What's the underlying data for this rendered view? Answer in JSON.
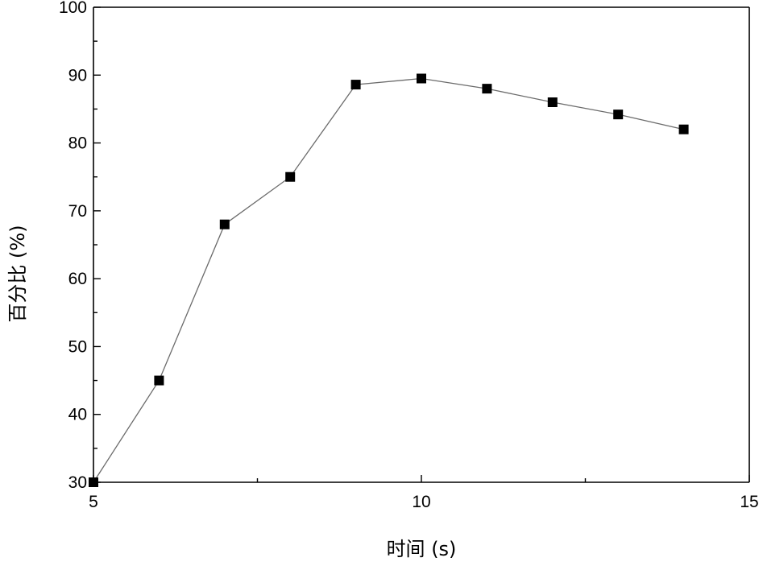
{
  "chart_data": {
    "type": "line",
    "title": "",
    "xlabel": "时间 (s)",
    "ylabel": "百分比 (%)",
    "xlim": [
      5,
      15
    ],
    "ylim": [
      30,
      100
    ],
    "x_ticks": [
      5,
      10,
      15
    ],
    "x_minor_ticks": [
      7.5,
      12.5
    ],
    "y_ticks": [
      30,
      40,
      50,
      60,
      70,
      80,
      90,
      100
    ],
    "grid": false,
    "legend": "none",
    "series": [
      {
        "x": [
          5,
          6,
          7,
          8,
          9,
          10,
          11,
          12,
          13,
          14
        ],
        "y": [
          30,
          45,
          68,
          75,
          88.6,
          89.5,
          88,
          86,
          84.2,
          82
        ],
        "marker": "square",
        "color": "#000000",
        "line_color": "#6b6b6b"
      }
    ]
  }
}
